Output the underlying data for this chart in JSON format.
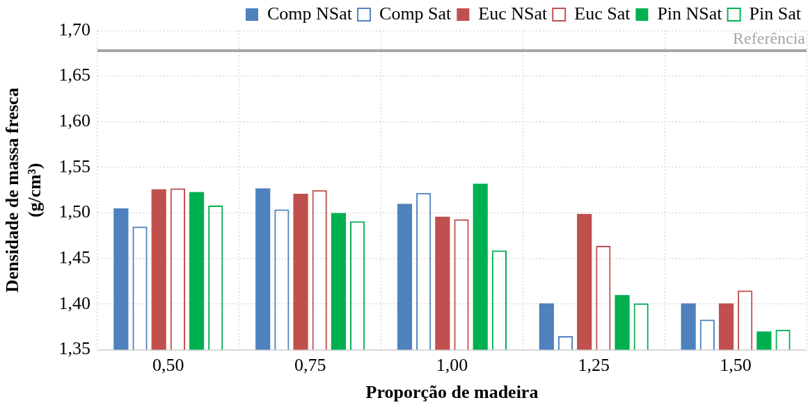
{
  "chart_data": {
    "type": "bar",
    "xlabel": "Proporção de madeira",
    "ylabel": "Densidade de massa fresca (g/cm³)",
    "categories": [
      "0,50",
      "0,75",
      "1,00",
      "1,25",
      "1,50"
    ],
    "series": [
      {
        "name": "Comp NSat",
        "color": "#4f81bd",
        "values": [
          1.505,
          1.527,
          1.51,
          1.401,
          1.401
        ]
      },
      {
        "name": "Comp Sat",
        "color": "#4f81bd",
        "values": [
          1.485,
          1.504,
          1.522,
          1.365,
          1.383
        ]
      },
      {
        "name": "Euc NSat",
        "color": "#c0504d",
        "values": [
          1.526,
          1.521,
          1.496,
          1.499,
          1.401
        ]
      },
      {
        "name": "Euc Sat",
        "color": "#c0504d",
        "values": [
          1.527,
          1.525,
          1.493,
          1.464,
          1.415
        ]
      },
      {
        "name": "Pin NSat",
        "color": "#00b050",
        "values": [
          1.523,
          1.5,
          1.532,
          1.41,
          1.37
        ]
      },
      {
        "name": "Pin Sat",
        "color": "#00b050",
        "values": [
          1.508,
          1.491,
          1.459,
          1.401,
          1.372
        ]
      }
    ],
    "ylim": [
      1.35,
      1.7
    ],
    "yticks": [
      {
        "value": 1.35,
        "label": "1,35"
      },
      {
        "value": 1.4,
        "label": "1,40"
      },
      {
        "value": 1.45,
        "label": "1,45"
      },
      {
        "value": 1.5,
        "label": "1,50"
      },
      {
        "value": 1.55,
        "label": "1,55"
      },
      {
        "value": 1.6,
        "label": "1,60"
      },
      {
        "value": 1.65,
        "label": "1,65"
      },
      {
        "value": 1.7,
        "label": "1,70"
      }
    ],
    "ref_lines": [
      {
        "axis": "y",
        "value": 1.678,
        "label": "Referência",
        "color": "#a6a6a6"
      }
    ],
    "grid": true,
    "legend": "top"
  }
}
